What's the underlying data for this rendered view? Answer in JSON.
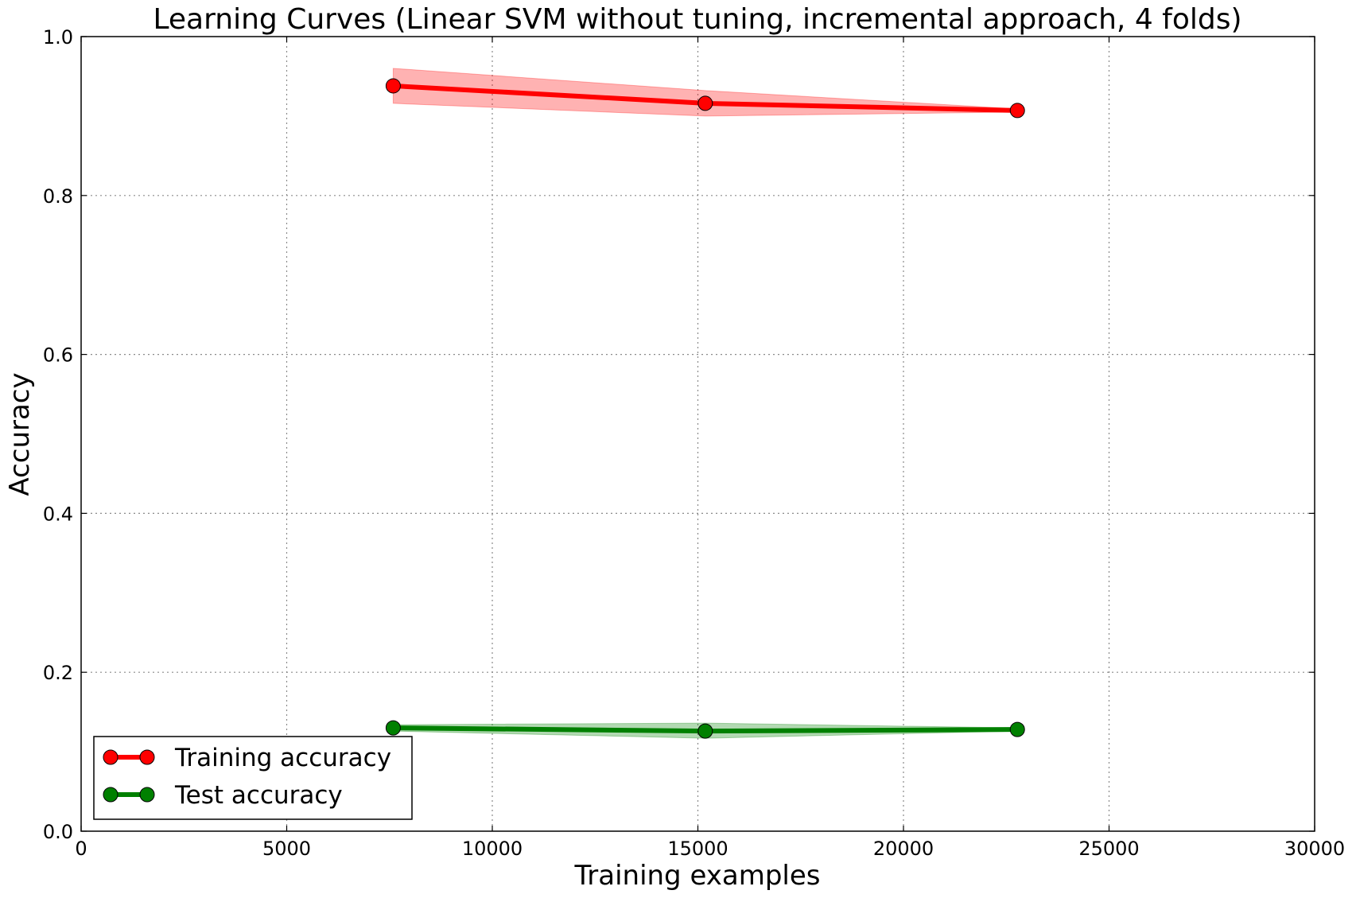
{
  "chart_data": {
    "type": "line",
    "title": "Learning Curves (Linear SVM without tuning, incremental approach, 4 folds)",
    "xlabel": "Training examples",
    "ylabel": "Accuracy",
    "xlim": [
      0,
      30000
    ],
    "ylim": [
      0.0,
      1.0
    ],
    "x_ticks": [
      0,
      5000,
      10000,
      15000,
      20000,
      25000,
      30000
    ],
    "x_tick_labels": [
      "0",
      "5000",
      "10000",
      "15000",
      "20000",
      "25000",
      "30000"
    ],
    "y_ticks": [
      0.0,
      0.2,
      0.4,
      0.6,
      0.8,
      1.0
    ],
    "y_tick_labels": [
      "0.0",
      "0.2",
      "0.4",
      "0.6",
      "0.8",
      "1.0"
    ],
    "grid": true,
    "legend_position": "lower-left",
    "series": [
      {
        "name": "Training accuracy",
        "color": "#ff0000",
        "band_color": "#ff0000",
        "marker": "circle",
        "x": [
          7590,
          15180,
          22770
        ],
        "y": [
          0.938,
          0.916,
          0.907
        ],
        "band_lower": [
          0.916,
          0.9,
          0.905
        ],
        "band_upper": [
          0.96,
          0.932,
          0.909
        ]
      },
      {
        "name": "Test accuracy",
        "color": "#008000",
        "band_color": "#008000",
        "marker": "circle",
        "x": [
          7590,
          15180,
          22770
        ],
        "y": [
          0.13,
          0.126,
          0.128
        ],
        "band_lower": [
          0.126,
          0.117,
          0.126
        ],
        "band_upper": [
          0.134,
          0.136,
          0.13
        ]
      }
    ]
  }
}
